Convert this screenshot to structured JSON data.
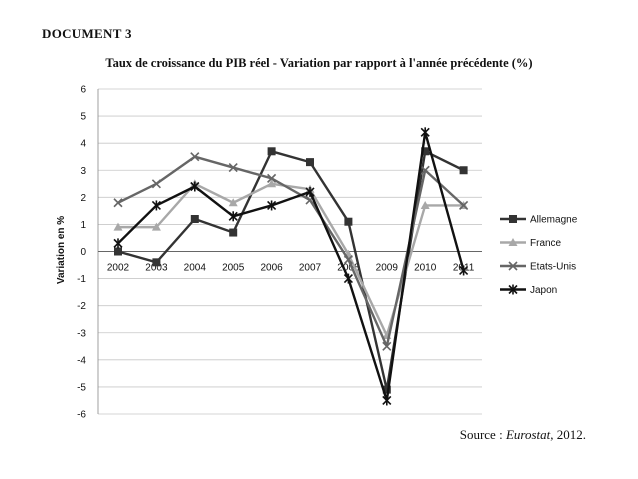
{
  "document": {
    "label": "DOCUMENT 3"
  },
  "source": {
    "prefix": "Source : ",
    "name": "Eurostat",
    "suffix": ", 2012."
  },
  "chart_data": {
    "type": "line",
    "title": "Taux de croissance du PIB réel - Variation par rapport  à l'année précédente (%)",
    "xlabel": "",
    "ylabel": "Variation en %",
    "categories": [
      "2002",
      "2003",
      "2004",
      "2005",
      "2006",
      "2007",
      "2008",
      "2009",
      "2010",
      "2011"
    ],
    "ylim": [
      -6,
      6
    ],
    "yticks": [
      "6",
      "5",
      "4",
      "3",
      "2",
      "1",
      "0",
      "-1",
      "-2",
      "-3",
      "-4",
      "-5",
      "-6"
    ],
    "grid": true,
    "legend_position": "right",
    "series": [
      {
        "name": "Allemagne",
        "marker": "square",
        "color": "#333333",
        "values": [
          0.0,
          -0.4,
          1.2,
          0.7,
          3.7,
          3.3,
          1.1,
          -5.1,
          3.7,
          3.0
        ]
      },
      {
        "name": "France",
        "marker": "triangle",
        "color": "#a8a8a8",
        "values": [
          0.9,
          0.9,
          2.5,
          1.8,
          2.5,
          2.3,
          -0.1,
          -3.1,
          1.7,
          1.7
        ]
      },
      {
        "name": "Etats-Unis",
        "marker": "x",
        "color": "#666666",
        "values": [
          1.8,
          2.5,
          3.5,
          3.1,
          2.7,
          1.9,
          -0.3,
          -3.5,
          3.0,
          1.7
        ]
      },
      {
        "name": "Japon",
        "marker": "star",
        "color": "#111111",
        "values": [
          0.3,
          1.7,
          2.4,
          1.3,
          1.7,
          2.2,
          -1.0,
          -5.5,
          4.4,
          -0.7
        ]
      }
    ]
  }
}
